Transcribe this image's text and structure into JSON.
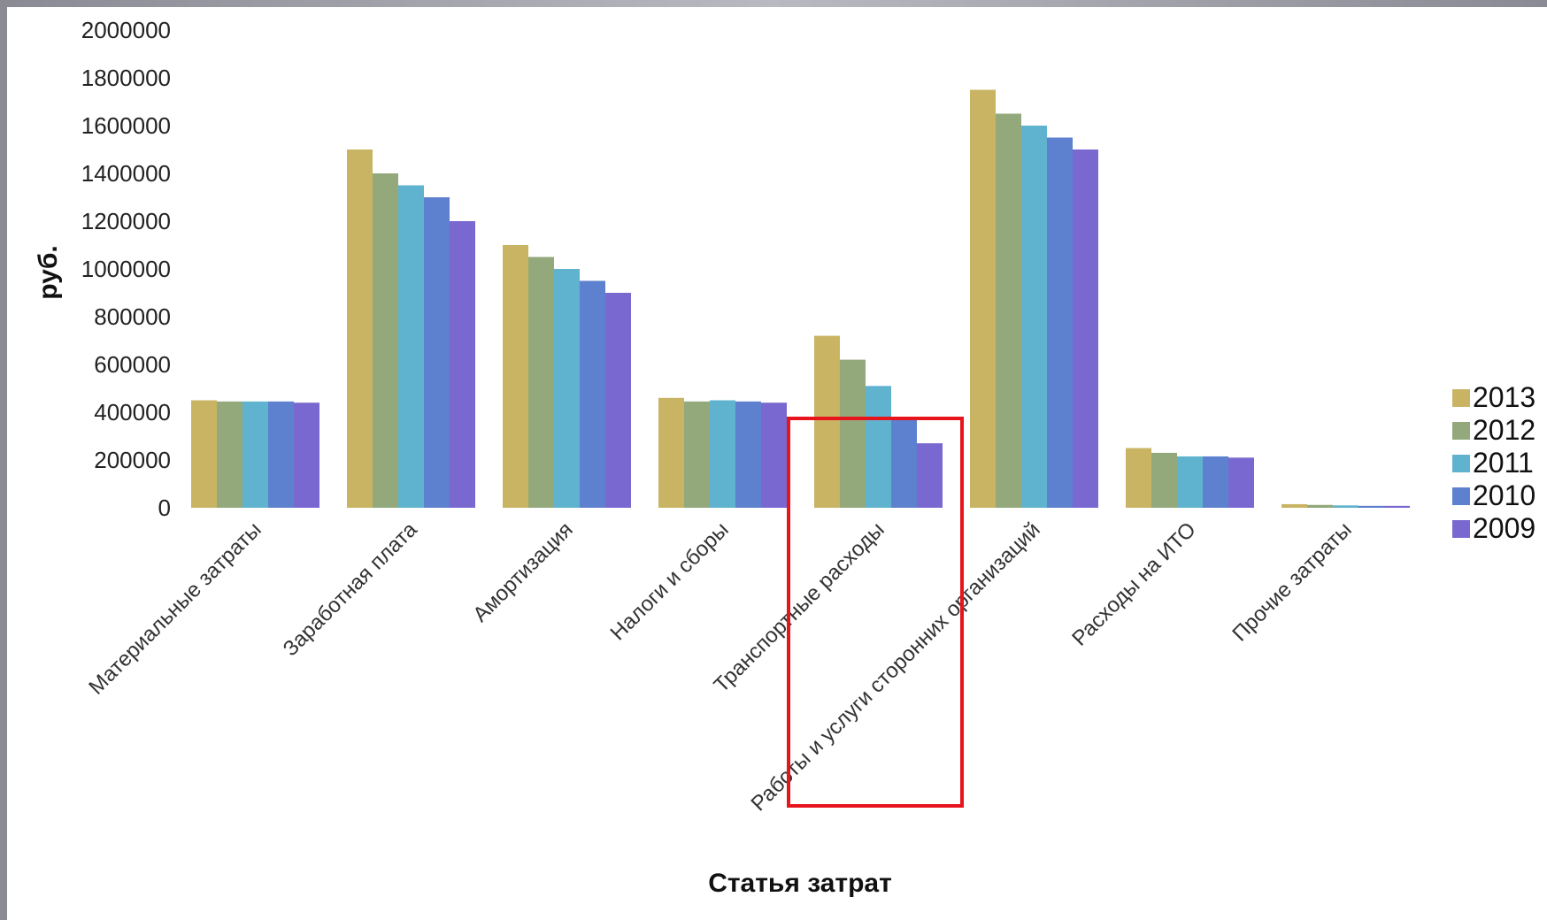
{
  "chart_data": {
    "type": "bar",
    "xlabel": "Статья затрат",
    "ylabel": "руб.",
    "ylim": [
      0,
      2000000
    ],
    "yticks": [
      0,
      200000,
      400000,
      600000,
      800000,
      1000000,
      1200000,
      1400000,
      1600000,
      1800000,
      2000000
    ],
    "grid": false,
    "legend_position": "right",
    "categories": [
      "Материальные затраты",
      "Заработная плата",
      "Амортизация",
      "Налоги и сборы",
      "Транспортные расходы",
      "Работы и услуги сторонних организаций",
      "Расходы на ИТО",
      "Прочие затраты"
    ],
    "series": [
      {
        "name": "2013",
        "color": "#c8b463",
        "values": [
          450000,
          1500000,
          1100000,
          460000,
          720000,
          1750000,
          250000,
          15000
        ]
      },
      {
        "name": "2012",
        "color": "#93a97b",
        "values": [
          445000,
          1400000,
          1050000,
          445000,
          620000,
          1650000,
          230000,
          12000
        ]
      },
      {
        "name": "2011",
        "color": "#5fb3cf",
        "values": [
          445000,
          1350000,
          1000000,
          450000,
          510000,
          1600000,
          215000,
          10000
        ]
      },
      {
        "name": "2010",
        "color": "#5d80cf",
        "values": [
          445000,
          1300000,
          950000,
          445000,
          370000,
          1550000,
          215000,
          8000
        ]
      },
      {
        "name": "2009",
        "color": "#7a68d1",
        "values": [
          440000,
          1200000,
          900000,
          440000,
          270000,
          1500000,
          210000,
          8000
        ]
      }
    ],
    "annotations": [
      {
        "type": "highlight-rectangle",
        "color": "#e8141c",
        "around_category": "Работы и услуги сторонних организаций"
      }
    ]
  }
}
